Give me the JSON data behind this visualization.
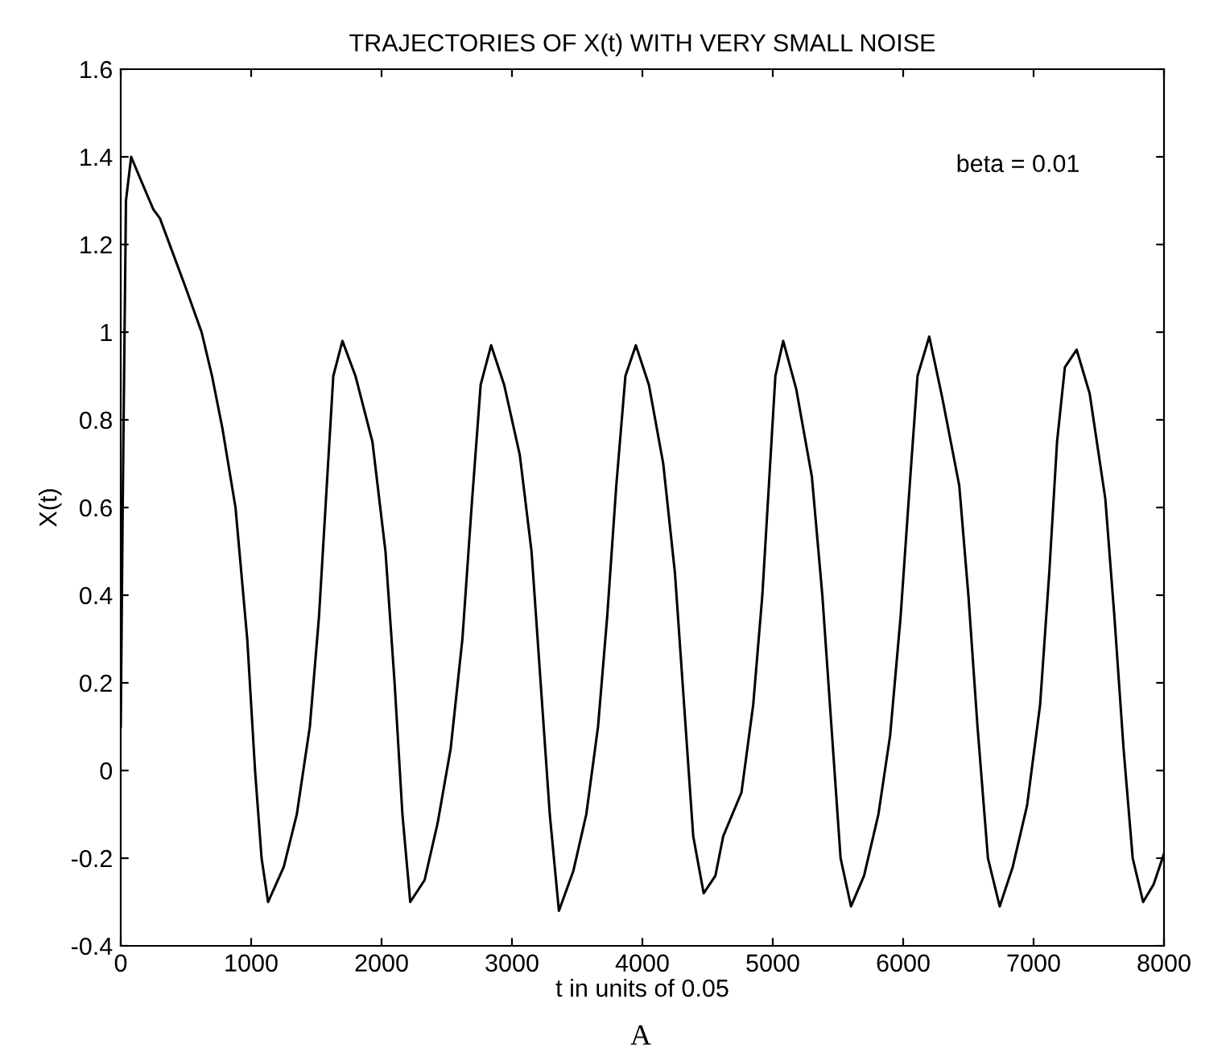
{
  "chart_data": {
    "type": "line",
    "title": "TRAJECTORIES OF X(t) WITH VERY SMALL NOISE",
    "xlabel": "t in units of 0.05",
    "ylabel": "X(t)",
    "annotations": [
      "beta = 0.01",
      "A"
    ],
    "xlim": [
      0,
      8000
    ],
    "ylim": [
      -0.4,
      1.6
    ],
    "xticks": [
      0,
      1000,
      2000,
      3000,
      4000,
      5000,
      6000,
      7000,
      8000
    ],
    "yticks": [
      -0.4,
      -0.2,
      0,
      0.2,
      0.4,
      0.6,
      0.8,
      1,
      1.2,
      1.4,
      1.6
    ],
    "grid": false,
    "legend": false,
    "series": [
      {
        "color": "#000000",
        "x": [
          0,
          15,
          40,
          80,
          150,
          250,
          300,
          400,
          500,
          620,
          700,
          780,
          880,
          970,
          1030,
          1080,
          1130,
          1250,
          1350,
          1450,
          1520,
          1580,
          1630,
          1700,
          1800,
          1930,
          2030,
          2100,
          2160,
          2220,
          2330,
          2430,
          2530,
          2620,
          2690,
          2760,
          2840,
          2940,
          3060,
          3150,
          3220,
          3290,
          3360,
          3470,
          3570,
          3660,
          3730,
          3800,
          3870,
          3950,
          4050,
          4160,
          4250,
          4320,
          4390,
          4470,
          4560,
          4620,
          4760,
          4850,
          4920,
          4980,
          5020,
          5080,
          5180,
          5300,
          5380,
          5450,
          5520,
          5600,
          5700,
          5810,
          5900,
          5980,
          6050,
          6110,
          6200,
          6300,
          6430,
          6500,
          6570,
          6650,
          6740,
          6840,
          6950,
          7050,
          7120,
          7180,
          7240,
          7330,
          7430,
          7550,
          7620,
          7690,
          7760,
          7840,
          7920,
          8000
        ],
        "values": [
          0.1,
          0.6,
          1.3,
          1.4,
          1.35,
          1.28,
          1.26,
          1.18,
          1.1,
          1.0,
          0.9,
          0.78,
          0.6,
          0.3,
          0.0,
          -0.2,
          -0.3,
          -0.22,
          -0.1,
          0.1,
          0.35,
          0.65,
          0.9,
          0.98,
          0.9,
          0.75,
          0.5,
          0.2,
          -0.1,
          -0.3,
          -0.25,
          -0.12,
          0.05,
          0.3,
          0.6,
          0.88,
          0.97,
          0.88,
          0.72,
          0.5,
          0.2,
          -0.1,
          -0.32,
          -0.23,
          -0.1,
          0.1,
          0.35,
          0.65,
          0.9,
          0.97,
          0.88,
          0.7,
          0.45,
          0.15,
          -0.15,
          -0.28,
          -0.24,
          -0.15,
          -0.05,
          0.15,
          0.4,
          0.7,
          0.9,
          0.98,
          0.87,
          0.67,
          0.4,
          0.1,
          -0.2,
          -0.31,
          -0.24,
          -0.1,
          0.08,
          0.35,
          0.65,
          0.9,
          0.99,
          0.85,
          0.65,
          0.4,
          0.1,
          -0.2,
          -0.31,
          -0.22,
          -0.08,
          0.15,
          0.45,
          0.75,
          0.92,
          0.96,
          0.86,
          0.62,
          0.35,
          0.05,
          -0.2,
          -0.3,
          -0.26,
          -0.19
        ]
      }
    ]
  }
}
